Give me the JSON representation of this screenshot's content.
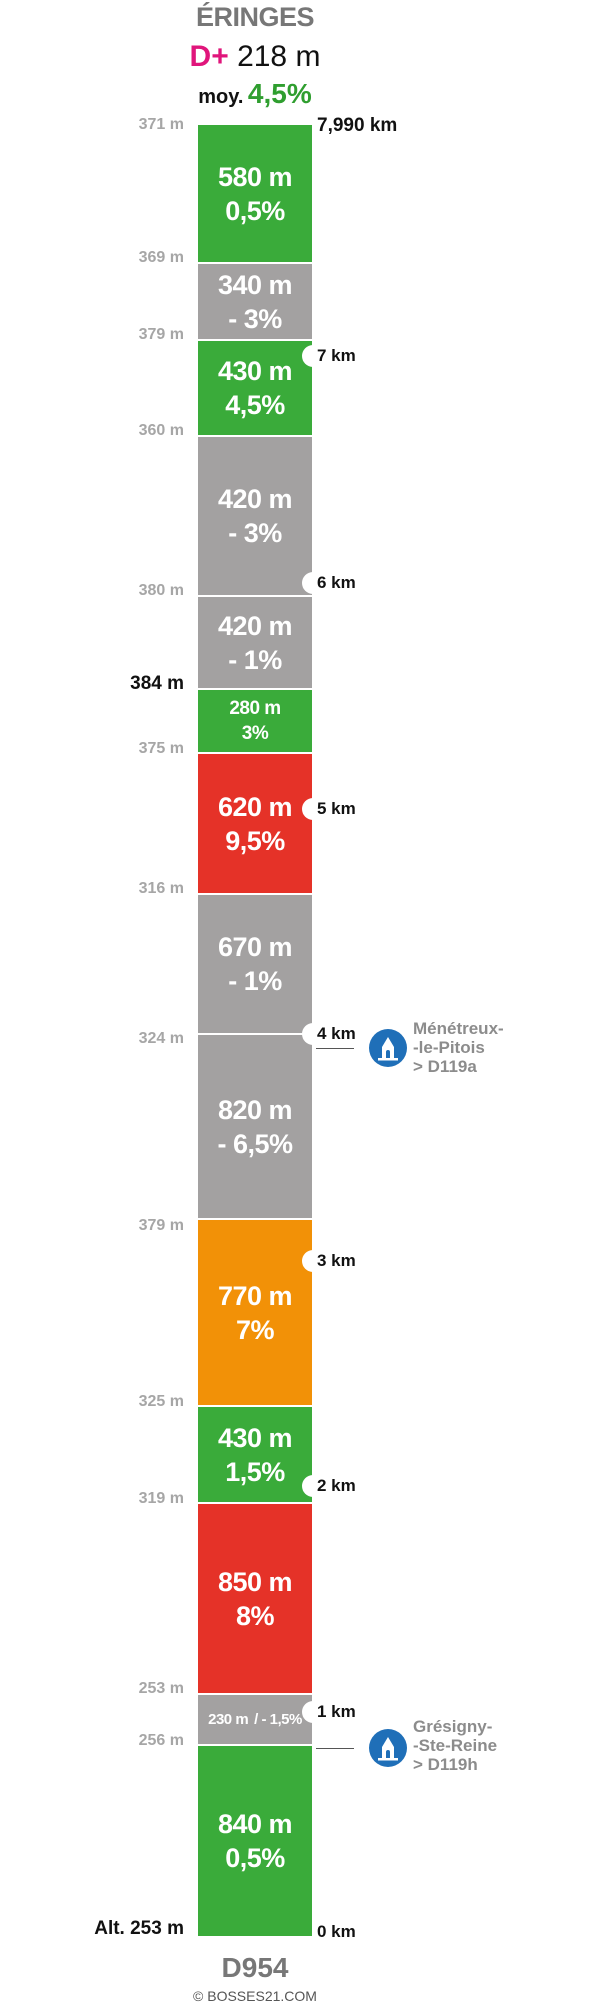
{
  "header": {
    "title": "ÉRINGES",
    "gain_prefix": "D+",
    "gain_value": "218 m",
    "avg_label": "moy.",
    "avg_value": "4,5%"
  },
  "colors": {
    "green": "#3aab3a",
    "gray": "#a3a1a1",
    "red": "#e53228",
    "orange": "#f29107",
    "magenta": "#e0157b",
    "blue": "#1f6fb8"
  },
  "segments": [
    {
      "length": "580 m",
      "grade": "0,5%",
      "color": "green"
    },
    {
      "length": "340 m",
      "grade": "- 3%",
      "color": "gray"
    },
    {
      "length": "430 m",
      "grade": "4,5%",
      "color": "green"
    },
    {
      "length": "420 m",
      "grade": "- 3%",
      "color": "gray"
    },
    {
      "length": "420 m",
      "grade": "- 1%",
      "color": "gray"
    },
    {
      "length": "280 m",
      "grade": "3%",
      "color": "green"
    },
    {
      "length": "620 m",
      "grade": "9,5%",
      "color": "red"
    },
    {
      "length": "670 m",
      "grade": "- 1%",
      "color": "gray"
    },
    {
      "length": "820 m",
      "grade": "- 6,5%",
      "color": "gray"
    },
    {
      "length": "770 m",
      "grade": "7%",
      "color": "orange"
    },
    {
      "length": "430 m",
      "grade": "1,5%",
      "color": "green"
    },
    {
      "length": "850 m",
      "grade": "8%",
      "color": "red"
    },
    {
      "length": "230 m",
      "grade": "/ - 1,5%",
      "color": "gray"
    },
    {
      "length": "840 m",
      "grade": "0,5%",
      "color": "green"
    }
  ],
  "altitudes": [
    "371 m",
    "369 m",
    "379 m",
    "360 m",
    "380 m",
    "384 m",
    "375 m",
    "316 m",
    "324 m",
    "379 m",
    "325 m",
    "319 m",
    "253 m",
    "256 m",
    "Alt. 253 m"
  ],
  "distances": {
    "total": "7,990 km",
    "markers": [
      "7 km",
      "6 km",
      "5 km",
      "4 km",
      "3 km",
      "2 km",
      "1 km",
      "0 km"
    ]
  },
  "junctions": [
    {
      "icon": "church-icon",
      "lines": [
        "Ménétreux-",
        "-le-Pitois",
        "> D119a"
      ]
    },
    {
      "icon": "church-icon",
      "lines": [
        "Grésigny-",
        "-Ste-Reine",
        "> D119h"
      ]
    }
  ],
  "footer": {
    "road": "D954",
    "credit": "© BOSSES21.COM"
  }
}
